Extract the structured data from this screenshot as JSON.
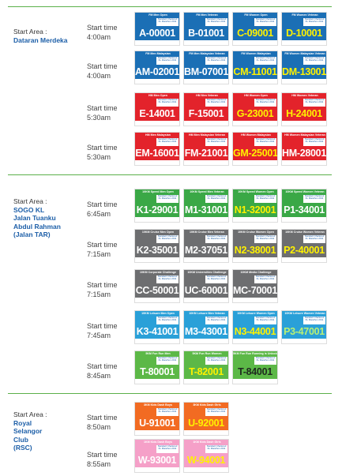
{
  "bib_sponsor": "Standard Chartered KL Marathon 2011",
  "sections": [
    {
      "label_lines": [
        "Start Area :",
        "Dataran Merdeka"
      ],
      "rows": [
        {
          "start_label": "Start time",
          "time": "4:00am",
          "color": "#1b6fb5",
          "bibs": [
            {
              "category": "FM Men Open",
              "number": "A-00001",
              "text_color": "#ffffff"
            },
            {
              "category": "FM Men Veteran",
              "number": "B-01001",
              "text_color": "#ffffff"
            },
            {
              "category": "FM Women Open",
              "number": "C-09001",
              "text_color": "#fff200"
            },
            {
              "category": "FM Women Veteran",
              "number": "D-10001",
              "text_color": "#fff200"
            }
          ]
        },
        {
          "start_label": "Start time",
          "time": "4:00am",
          "color": "#1b6fb5",
          "bibs": [
            {
              "category": "FM Men Malaysian",
              "number": "AM-02001",
              "text_color": "#ffffff"
            },
            {
              "category": "FM Men Malaysian Veteran",
              "number": "BM-07001",
              "text_color": "#ffffff"
            },
            {
              "category": "FM Women Malaysian",
              "number": "CM-11001",
              "text_color": "#fff200"
            },
            {
              "category": "FM Women Malaysian Veteran",
              "number": "DM-13001",
              "text_color": "#fff200"
            }
          ]
        },
        {
          "start_label": "Start time",
          "time": "5:30am",
          "color": "#e3232b",
          "bibs": [
            {
              "category": "HM Men Open",
              "number": "E-14001",
              "text_color": "#ffffff"
            },
            {
              "category": "HM Men Veteran",
              "number": "F-15001",
              "text_color": "#ffffff"
            },
            {
              "category": "HM Women Open",
              "number": "G-23001",
              "text_color": "#fff200"
            },
            {
              "category": "HM Women Veteran",
              "number": "H-24001",
              "text_color": "#fff200"
            }
          ]
        },
        {
          "start_label": "Start time",
          "time": "5:30am",
          "color": "#e3232b",
          "bibs": [
            {
              "category": "HM Men Malaysian",
              "number": "EM-16001",
              "text_color": "#ffffff"
            },
            {
              "category": "HM Men Malaysian Veteran",
              "number": "FM-21001",
              "text_color": "#ffffff"
            },
            {
              "category": "HM Women Malaysian",
              "number": "GM-25001",
              "text_color": "#fff200"
            },
            {
              "category": "HM Women Malaysian Veteran",
              "number": "HM-28001",
              "text_color": "#ffffff"
            }
          ]
        }
      ]
    },
    {
      "label_lines": [
        "Start Area :",
        "SOGO KL",
        "Jalan Tuanku",
        "Abdul Rahman",
        "(Jalan TAR)"
      ],
      "rows": [
        {
          "start_label": "Start time",
          "time": "6:45am",
          "color": "#3aa846",
          "bibs": [
            {
              "category": "10KM Speed Men Open",
              "number": "K1-29001",
              "text_color": "#ffffff"
            },
            {
              "category": "10KM Speed Men Veteran",
              "number": "M1-31001",
              "text_color": "#ffffff"
            },
            {
              "category": "10KM Speed Women Open",
              "number": "N1-32001",
              "text_color": "#fff200"
            },
            {
              "category": "10KM Speed Women Veteran",
              "number": "P1-34001",
              "text_color": "#ffffff"
            }
          ]
        },
        {
          "start_label": "Start time",
          "time": "7:15am",
          "color": "#6d6e70",
          "bibs": [
            {
              "category": "10KM Cruise Men Open",
              "number": "K2-35001",
              "text_color": "#ffffff"
            },
            {
              "category": "10KM Cruise Men Veteran",
              "number": "M2-37051",
              "text_color": "#ffffff"
            },
            {
              "category": "10KM Cruise Women Open",
              "number": "N2-38001",
              "text_color": "#fff200"
            },
            {
              "category": "10KM Cruise Women Veteran",
              "number": "P2-40001",
              "text_color": "#fff200"
            }
          ]
        },
        {
          "start_label": "Start time",
          "time": "7:15am",
          "color": "#6d6e70",
          "bibs": [
            {
              "category": "10KM Corporate Challenge",
              "number": "CC-50001",
              "text_color": "#ffffff"
            },
            {
              "category": "10KM Universities Challenge",
              "number": "UC-60001",
              "text_color": "#ffffff"
            },
            {
              "category": "10KM Media Challenge",
              "number": "MC-70001",
              "text_color": "#ffffff"
            }
          ]
        },
        {
          "start_label": "Start time",
          "time": "7:45am",
          "color": "#2aa0d8",
          "bibs": [
            {
              "category": "10KM Leisure Men Open",
              "number": "K3-41001",
              "text_color": "#ffffff"
            },
            {
              "category": "10KM Leisure Men Veteran",
              "number": "M3-43001",
              "text_color": "#ffffff"
            },
            {
              "category": "10KM Leisure Women Open",
              "number": "N3-44001",
              "text_color": "#fff200"
            },
            {
              "category": "10KM Leisure Women Veteran",
              "number": "P3-47001",
              "text_color": "#b8f075"
            }
          ]
        },
        {
          "start_label": "Start time",
          "time": "8:45am",
          "color": "#5cb847",
          "bibs": [
            {
              "category": "5KM Fun Run Men",
              "number": "T-80001",
              "text_color": "#ffffff"
            },
            {
              "category": "5KM Fun Run Women",
              "number": "T-82001",
              "text_color": "#fff200"
            },
            {
              "category": "5KM Fun Run Running is Unlocking",
              "number": "T-84001",
              "text_color": "#1f2a1f"
            }
          ]
        }
      ]
    },
    {
      "label_lines": [
        "Start Area :",
        "Royal",
        "Selangor",
        "Club",
        "(RSC)"
      ],
      "rows": [
        {
          "start_label": "Start time",
          "time": "8:50am",
          "color": "#f26b22",
          "bibs": [
            {
              "category": "3KM Kids Dash Boys",
              "number": "U-91001",
              "text_color": "#ffffff"
            },
            {
              "category": "3KM Kids Dash Girls",
              "number": "U-92001",
              "text_color": "#fff200"
            }
          ]
        },
        {
          "start_label": "Start time",
          "time": "8:55am",
          "color": "#f5a0c8",
          "bibs": [
            {
              "category": "1KM Kids Dash Boys",
              "number": "W-93001",
              "text_color": "#ffffff"
            },
            {
              "category": "1KM Kids Dash Girls",
              "number": "W-94001",
              "text_color": "#fff200"
            }
          ]
        }
      ]
    }
  ]
}
